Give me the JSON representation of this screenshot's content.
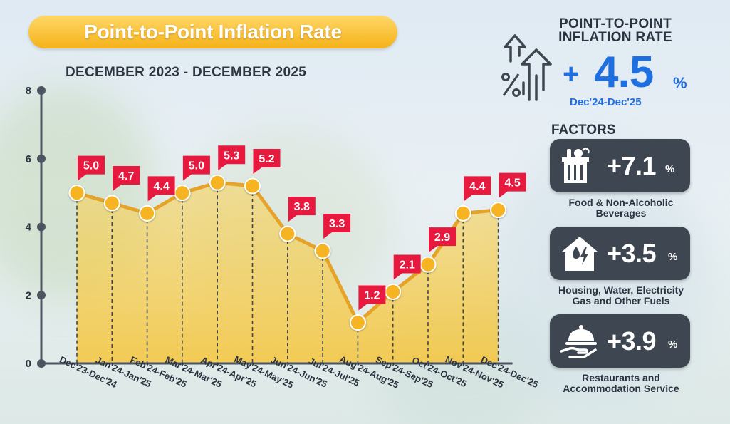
{
  "title": "Point-to-Point Inflation Rate",
  "subtitle": "DECEMBER 2023 - DECEMBER 2025",
  "chart_data": {
    "type": "line",
    "title": "Point-to-Point Inflation Rate",
    "categories": [
      "Dec'23-Dec'24",
      "Jan'24-Jan'25",
      "Feb'24-Feb'25",
      "Mar'24-Mar'25",
      "Apr'24-Apr'25",
      "May'24-May'25",
      "Jun'24-Jun'25",
      "Jul'24-Jul'25",
      "Aug'24-Aug'25",
      "Sep'24-Sep'25",
      "Oct'24-Oct'25",
      "Nov'24-Nov'25",
      "Dec'24-Dec'25"
    ],
    "values": [
      5.0,
      4.7,
      4.4,
      5.0,
      5.3,
      5.2,
      3.8,
      3.3,
      1.2,
      2.1,
      2.9,
      4.4,
      4.5
    ],
    "labels": [
      "5.0",
      "4.7",
      "4.4",
      "5.0",
      "5.3",
      "5.2",
      "3.8",
      "3.3",
      "1.2",
      "2.1",
      "2.9",
      "4.4",
      "4.5"
    ],
    "yticks": [
      "0",
      "2",
      "4",
      "6",
      "8"
    ],
    "ylim": [
      0,
      8
    ],
    "xlabel": "",
    "ylabel": "",
    "colors": {
      "line": "#e5a32a",
      "marker": "#f6b320",
      "label_bg": "#e8193f",
      "axis": "#4d5560",
      "fill": "#f8d257"
    }
  },
  "kpi": {
    "title_line1": "POINT-TO-POINT",
    "title_line2": "INFLATION RATE",
    "sign": "+",
    "value": "4.5",
    "unit": "%",
    "period": "Dec'24-Dec'25",
    "icon": "growth-arrows-percent-icon"
  },
  "factors": {
    "title": "FACTORS",
    "items": [
      {
        "icon": "grocery-bag-icon",
        "value": "+7.1",
        "unit": "%",
        "label_line1": "Food & Non-Alcoholic",
        "label_line2": "Beverages"
      },
      {
        "icon": "house-utilities-icon",
        "value": "+3.5",
        "unit": "%",
        "label_line1": "Housing, Water, Electricity",
        "label_line2": "Gas and Other Fuels"
      },
      {
        "icon": "serving-cloche-icon",
        "value": "+3.9",
        "unit": "%",
        "label_line1": "Restaurants and",
        "label_line2": "Accommodation Service"
      }
    ]
  }
}
